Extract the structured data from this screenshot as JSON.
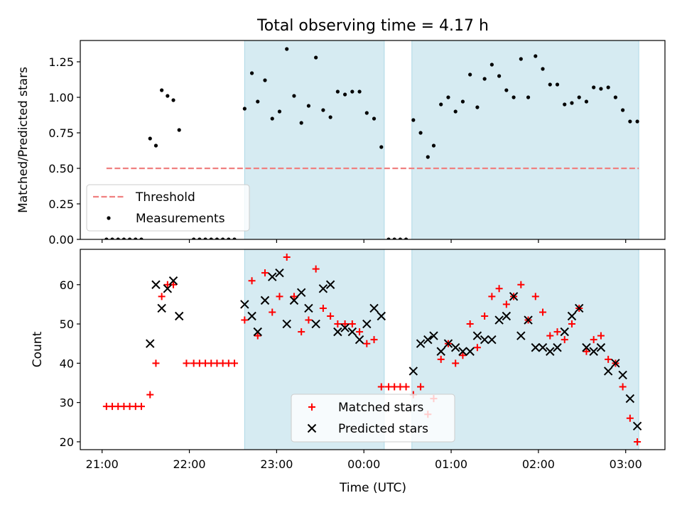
{
  "figure": {
    "title": "Total observing time = 4.17 h"
  },
  "colors": {
    "shade": "#add8e6",
    "threshold": "#f08080",
    "measurement": "#000000",
    "matched": "#ff0000",
    "predicted": "#000000"
  },
  "chart_data": [
    {
      "type": "scatter",
      "title": "Total observing time = 4.17 h",
      "xlabel": "",
      "ylabel": "Matched/Predicted stars",
      "xlim": [
        "20:45",
        "03:27"
      ],
      "ylim": [
        0,
        1.4
      ],
      "yticks": [
        0.0,
        0.25,
        0.5,
        0.75,
        1.0,
        1.25
      ],
      "ytick_labels": [
        "0.00",
        "0.25",
        "0.50",
        "0.75",
        "1.00",
        "1.25"
      ],
      "shaded_intervals": [
        [
          "22:38",
          "00:14"
        ],
        [
          "00:33",
          "03:09"
        ]
      ],
      "threshold": {
        "name": "Threshold",
        "value": 0.5,
        "from": "21:03",
        "to": "03:09"
      },
      "legend": [
        "Threshold",
        "Measurements"
      ],
      "legend_position": "lower left",
      "series": [
        {
          "name": "Measurements",
          "points": [
            [
              "21:03",
              0
            ],
            [
              "21:07",
              0
            ],
            [
              "21:11",
              0
            ],
            [
              "21:15",
              0
            ],
            [
              "21:19",
              0
            ],
            [
              "21:23",
              0
            ],
            [
              "21:27",
              0
            ],
            [
              "21:33",
              0.71
            ],
            [
              "21:37",
              0.66
            ],
            [
              "21:41",
              1.05
            ],
            [
              "21:45",
              1.01
            ],
            [
              "21:49",
              0.98
            ],
            [
              "21:53",
              0.77
            ],
            [
              "22:03",
              0
            ],
            [
              "22:07",
              0
            ],
            [
              "22:11",
              0
            ],
            [
              "22:15",
              0
            ],
            [
              "22:19",
              0
            ],
            [
              "22:23",
              0
            ],
            [
              "22:27",
              0
            ],
            [
              "22:31",
              0
            ],
            [
              "22:38",
              0.92
            ],
            [
              "22:43",
              1.17
            ],
            [
              "22:47",
              0.97
            ],
            [
              "22:52",
              1.12
            ],
            [
              "22:57",
              0.85
            ],
            [
              "23:02",
              0.9
            ],
            [
              "23:07",
              1.34
            ],
            [
              "23:12",
              1.01
            ],
            [
              "23:17",
              0.82
            ],
            [
              "23:22",
              0.94
            ],
            [
              "23:27",
              1.28
            ],
            [
              "23:32",
              0.91
            ],
            [
              "23:37",
              0.86
            ],
            [
              "23:42",
              1.04
            ],
            [
              "23:47",
              1.02
            ],
            [
              "23:52",
              1.04
            ],
            [
              "23:57",
              1.04
            ],
            [
              "00:02",
              0.89
            ],
            [
              "00:07",
              0.85
            ],
            [
              "00:12",
              0.65
            ],
            [
              "00:17",
              0
            ],
            [
              "00:21",
              0
            ],
            [
              "00:25",
              0
            ],
            [
              "00:29",
              0
            ],
            [
              "00:34",
              0.84
            ],
            [
              "00:39",
              0.75
            ],
            [
              "00:44",
              0.58
            ],
            [
              "00:48",
              0.66
            ],
            [
              "00:53",
              0.95
            ],
            [
              "00:58",
              1.0
            ],
            [
              "01:03",
              0.9
            ],
            [
              "01:08",
              0.97
            ],
            [
              "01:13",
              1.16
            ],
            [
              "01:18",
              0.93
            ],
            [
              "01:23",
              1.13
            ],
            [
              "01:28",
              1.23
            ],
            [
              "01:33",
              1.15
            ],
            [
              "01:38",
              1.05
            ],
            [
              "01:43",
              1.0
            ],
            [
              "01:48",
              1.27
            ],
            [
              "01:53",
              1.0
            ],
            [
              "01:58",
              1.29
            ],
            [
              "02:03",
              1.2
            ],
            [
              "02:08",
              1.09
            ],
            [
              "02:13",
              1.09
            ],
            [
              "02:18",
              0.95
            ],
            [
              "02:23",
              0.96
            ],
            [
              "02:28",
              1.0
            ],
            [
              "02:33",
              0.97
            ],
            [
              "02:38",
              1.07
            ],
            [
              "02:43",
              1.06
            ],
            [
              "02:48",
              1.07
            ],
            [
              "02:53",
              1.0
            ],
            [
              "02:58",
              0.91
            ],
            [
              "03:03",
              0.83
            ],
            [
              "03:08",
              0.83
            ]
          ]
        }
      ]
    },
    {
      "type": "scatter",
      "title": "",
      "xlabel": "Time (UTC)",
      "ylabel": "Count",
      "xlim": [
        "20:45",
        "03:27"
      ],
      "xticks": [
        "21:00",
        "22:00",
        "23:00",
        "00:00",
        "01:00",
        "02:00",
        "03:00"
      ],
      "ylim": [
        18,
        69
      ],
      "yticks": [
        20,
        30,
        40,
        50,
        60
      ],
      "shaded_intervals": [
        [
          "22:38",
          "00:14"
        ],
        [
          "00:33",
          "03:09"
        ]
      ],
      "legend": [
        "Matched stars",
        "Predicted stars"
      ],
      "legend_position": "lower center",
      "series": [
        {
          "name": "Matched stars",
          "points": [
            [
              "21:03",
              29
            ],
            [
              "21:07",
              29
            ],
            [
              "21:11",
              29
            ],
            [
              "21:15",
              29
            ],
            [
              "21:19",
              29
            ],
            [
              "21:23",
              29
            ],
            [
              "21:27",
              29
            ],
            [
              "21:33",
              32
            ],
            [
              "21:37",
              40
            ],
            [
              "21:41",
              57
            ],
            [
              "21:45",
              60
            ],
            [
              "21:49",
              60
            ],
            [
              "21:58",
              40
            ],
            [
              "22:03",
              40
            ],
            [
              "22:07",
              40
            ],
            [
              "22:11",
              40
            ],
            [
              "22:15",
              40
            ],
            [
              "22:19",
              40
            ],
            [
              "22:23",
              40
            ],
            [
              "22:27",
              40
            ],
            [
              "22:31",
              40
            ],
            [
              "22:38",
              51
            ],
            [
              "22:43",
              61
            ],
            [
              "22:47",
              47
            ],
            [
              "22:52",
              63
            ],
            [
              "22:57",
              53
            ],
            [
              "23:02",
              57
            ],
            [
              "23:07",
              67
            ],
            [
              "23:12",
              57
            ],
            [
              "23:17",
              48
            ],
            [
              "23:22",
              51
            ],
            [
              "23:27",
              64
            ],
            [
              "23:32",
              54
            ],
            [
              "23:37",
              52
            ],
            [
              "23:42",
              50
            ],
            [
              "23:47",
              50
            ],
            [
              "23:52",
              50
            ],
            [
              "23:57",
              48
            ],
            [
              "00:02",
              45
            ],
            [
              "00:07",
              46
            ],
            [
              "00:12",
              34
            ],
            [
              "00:17",
              34
            ],
            [
              "00:21",
              34
            ],
            [
              "00:25",
              34
            ],
            [
              "00:29",
              34
            ],
            [
              "00:34",
              32
            ],
            [
              "00:39",
              34
            ],
            [
              "00:44",
              27
            ],
            [
              "00:48",
              31
            ],
            [
              "00:53",
              41
            ],
            [
              "00:58",
              45
            ],
            [
              "01:03",
              40
            ],
            [
              "01:08",
              42
            ],
            [
              "01:13",
              50
            ],
            [
              "01:18",
              44
            ],
            [
              "01:23",
              52
            ],
            [
              "01:28",
              57
            ],
            [
              "01:33",
              59
            ],
            [
              "01:38",
              55
            ],
            [
              "01:43",
              57
            ],
            [
              "01:48",
              60
            ],
            [
              "01:53",
              51
            ],
            [
              "01:58",
              57
            ],
            [
              "02:03",
              53
            ],
            [
              "02:08",
              47
            ],
            [
              "02:13",
              48
            ],
            [
              "02:18",
              46
            ],
            [
              "02:23",
              50
            ],
            [
              "02:28",
              54
            ],
            [
              "02:33",
              43
            ],
            [
              "02:38",
              46
            ],
            [
              "02:43",
              47
            ],
            [
              "02:48",
              41
            ],
            [
              "02:53",
              40
            ],
            [
              "02:58",
              34
            ],
            [
              "03:03",
              26
            ],
            [
              "03:08",
              20
            ]
          ]
        },
        {
          "name": "Predicted stars",
          "points": [
            [
              "21:33",
              45
            ],
            [
              "21:37",
              60
            ],
            [
              "21:41",
              54
            ],
            [
              "21:45",
              59
            ],
            [
              "21:49",
              61
            ],
            [
              "21:53",
              52
            ],
            [
              "22:38",
              55
            ],
            [
              "22:43",
              52
            ],
            [
              "22:47",
              48
            ],
            [
              "22:52",
              56
            ],
            [
              "22:57",
              62
            ],
            [
              "23:02",
              63
            ],
            [
              "23:07",
              50
            ],
            [
              "23:12",
              56
            ],
            [
              "23:17",
              58
            ],
            [
              "23:22",
              54
            ],
            [
              "23:27",
              50
            ],
            [
              "23:32",
              59
            ],
            [
              "23:37",
              60
            ],
            [
              "23:42",
              48
            ],
            [
              "23:47",
              49
            ],
            [
              "23:52",
              48
            ],
            [
              "23:57",
              46
            ],
            [
              "00:02",
              50
            ],
            [
              "00:07",
              54
            ],
            [
              "00:12",
              52
            ],
            [
              "00:34",
              38
            ],
            [
              "00:39",
              45
            ],
            [
              "00:44",
              46
            ],
            [
              "00:48",
              47
            ],
            [
              "00:53",
              43
            ],
            [
              "00:58",
              45
            ],
            [
              "01:03",
              44
            ],
            [
              "01:08",
              43
            ],
            [
              "01:13",
              43
            ],
            [
              "01:18",
              47
            ],
            [
              "01:23",
              46
            ],
            [
              "01:28",
              46
            ],
            [
              "01:33",
              51
            ],
            [
              "01:38",
              52
            ],
            [
              "01:43",
              57
            ],
            [
              "01:48",
              47
            ],
            [
              "01:53",
              51
            ],
            [
              "01:58",
              44
            ],
            [
              "02:03",
              44
            ],
            [
              "02:08",
              43
            ],
            [
              "02:13",
              44
            ],
            [
              "02:18",
              48
            ],
            [
              "02:23",
              52
            ],
            [
              "02:28",
              54
            ],
            [
              "02:33",
              44
            ],
            [
              "02:38",
              43
            ],
            [
              "02:43",
              44
            ],
            [
              "02:48",
              38
            ],
            [
              "02:53",
              40
            ],
            [
              "02:58",
              37
            ],
            [
              "03:03",
              31
            ],
            [
              "03:08",
              24
            ]
          ]
        }
      ]
    }
  ]
}
